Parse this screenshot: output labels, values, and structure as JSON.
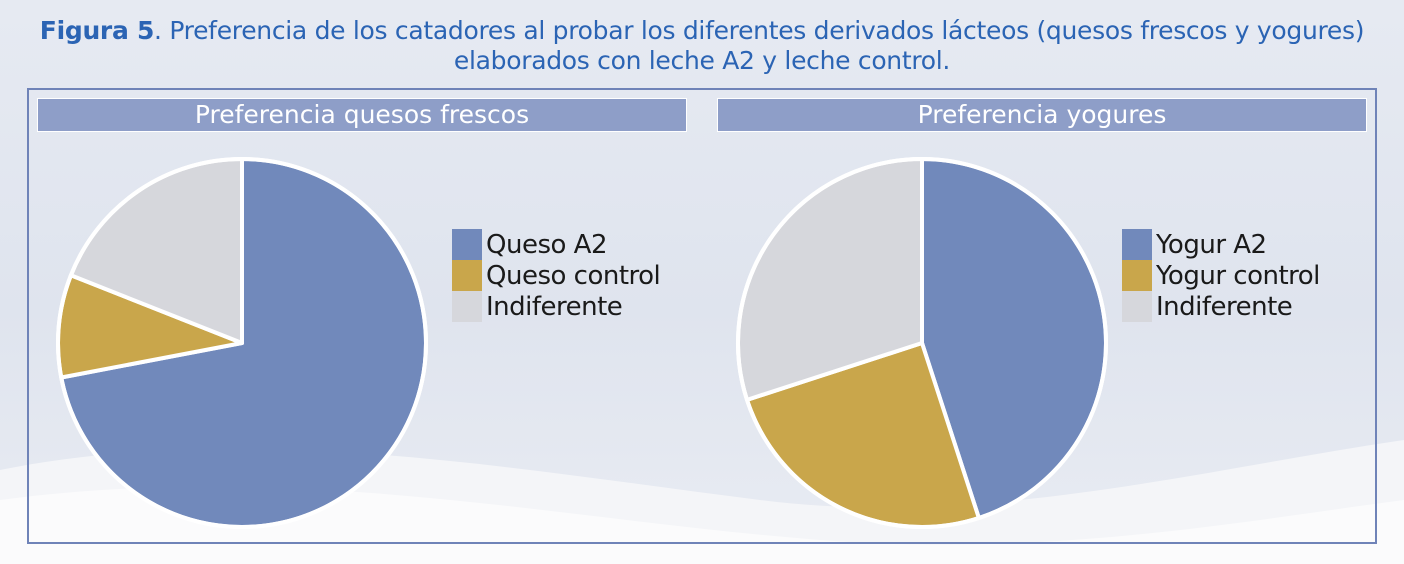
{
  "caption": {
    "label": "Figura 5",
    "text": ". Preferencia de los catadores al probar los diferentes derivados lácteos (quesos frescos y yogures) elaborados con leche A2 y leche control."
  },
  "colors": {
    "a2": "#7189bb",
    "control": "#c9a64b",
    "indiferente": "#d6d7dc",
    "title_bar": "#8e9ec8",
    "caption": "#2b64b4"
  },
  "chart_data": [
    {
      "type": "pie",
      "title": "Preferencia quesos frescos",
      "categories": [
        "Queso A2",
        "Queso control",
        "Indiferente"
      ],
      "values": [
        72,
        9,
        19
      ],
      "legend_position": "right"
    },
    {
      "type": "pie",
      "title": "Preferencia yogures",
      "categories": [
        "Yogur A2",
        "Yogur control",
        "Indiferente"
      ],
      "values": [
        45,
        25,
        30
      ],
      "legend_position": "right"
    }
  ]
}
